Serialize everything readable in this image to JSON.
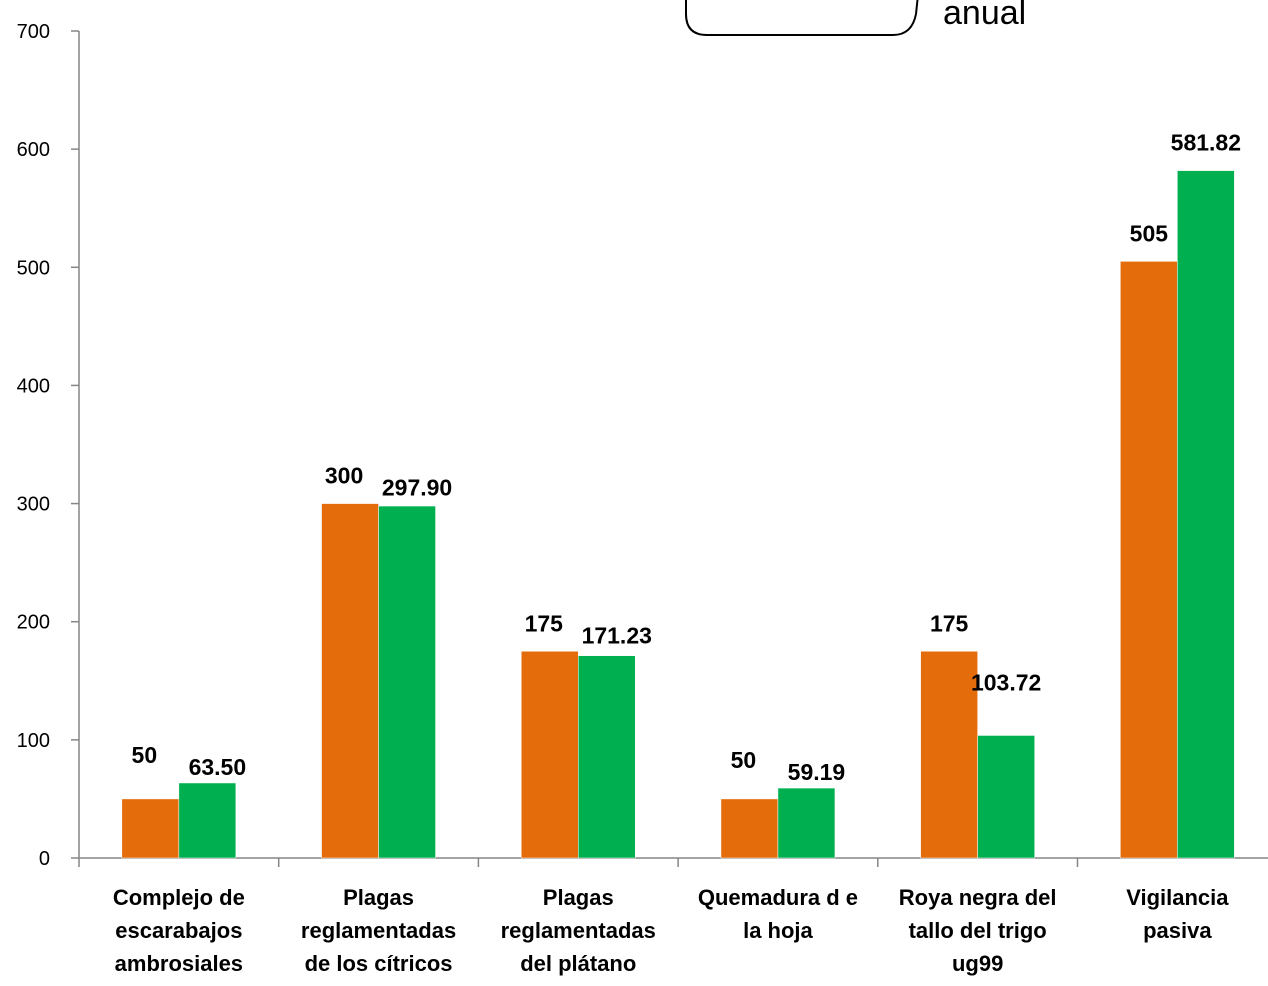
{
  "chart_data": {
    "type": "bar",
    "categories": [
      [
        "Complejo de",
        "escarabajos",
        "ambrosiales"
      ],
      [
        "Plagas",
        "reglamentadas",
        "de los cítricos"
      ],
      [
        "Plagas",
        "reglamentadas",
        "del plátano"
      ],
      [
        "Quemadura d e",
        "la hoja"
      ],
      [
        "Roya negra del",
        "tallo del trigo",
        "ug99"
      ],
      [
        "Vigilancia",
        "pasiva"
      ]
    ],
    "series": [
      {
        "color": "#E46C0A",
        "values": [
          50,
          300,
          175,
          50,
          175,
          505
        ],
        "labels": [
          "50",
          "300",
          "175",
          "50",
          "175",
          "505"
        ]
      },
      {
        "name": "anual",
        "color": "#00B050",
        "values": [
          63.5,
          297.9,
          171.23,
          59.19,
          103.72,
          581.82
        ],
        "labels": [
          "63.50",
          "297.90",
          "171.23",
          "59.19",
          "103.72",
          "581.82"
        ]
      }
    ],
    "ylim": [
      0,
      700
    ],
    "yticks": [
      "0",
      "100",
      "200",
      "300",
      "400",
      "500",
      "600",
      "700"
    ],
    "ytick_values": [
      0,
      100,
      200,
      300,
      400,
      500,
      600,
      700
    ],
    "grid": false,
    "legend": "top-right"
  }
}
